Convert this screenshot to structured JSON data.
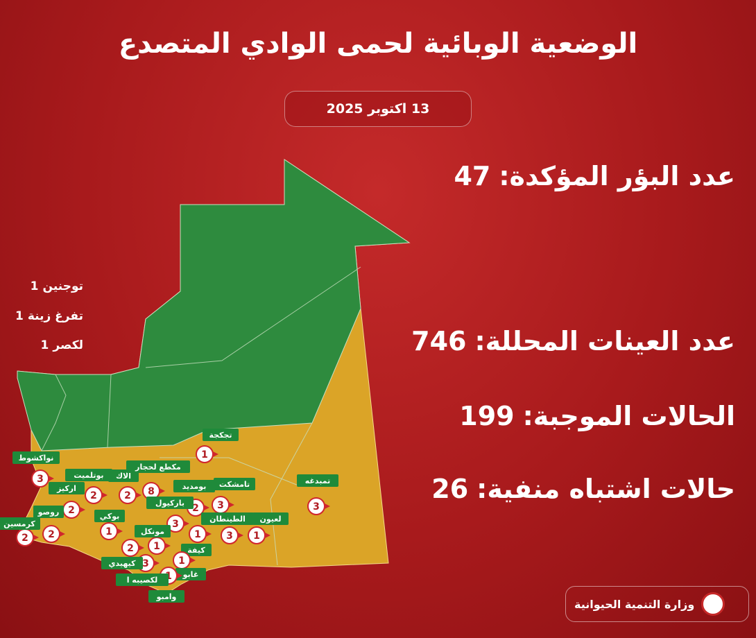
{
  "title": "الوضعية الوبائية لحمى الوادي المتصدع",
  "date": "13 اكتوبر 2025",
  "stats": [
    {
      "label": "عدد البؤر المؤكدة:",
      "value": 47
    },
    {
      "label": "عدد العينات المحللة:",
      "value": 746
    },
    {
      "label": "الحالات الموجبة:",
      "value": 199
    },
    {
      "label": "حالات اشتباه منفية:",
      "value": 26
    }
  ],
  "side_list": [
    {
      "name": "توجنين",
      "count": 1
    },
    {
      "name": "تفرغ زينة",
      "count": 1
    },
    {
      "name": "لكصر",
      "count": 1
    }
  ],
  "markers": [
    {
      "label": "تجكجة",
      "count": 1
    },
    {
      "label": "نواكشوط",
      "count": 3
    },
    {
      "label": "بوتلميت",
      "count": 2
    },
    {
      "label": "ألاك",
      "count": 2
    },
    {
      "label": "مكطع لحجار",
      "count": 8
    },
    {
      "label": "بومديد",
      "count": 2
    },
    {
      "label": "تامشكت",
      "count": 3
    },
    {
      "label": "تمبدغه",
      "count": 3
    },
    {
      "label": "اركيز",
      "count": 2
    },
    {
      "label": "روصو",
      "count": 2
    },
    {
      "label": "كرمسين",
      "count": 2
    },
    {
      "label": "باركيول",
      "count": 3
    },
    {
      "label": "بوكي",
      "count": 1
    },
    {
      "label": "مونكل",
      "count": 1
    },
    {
      "label": null,
      "count": 2
    },
    {
      "label": "الطينطان",
      "count": 3
    },
    {
      "label": "لعيون",
      "count": 1
    },
    {
      "label": "كيفة",
      "count": 1
    },
    {
      "label": "كيهيدي",
      "count": 3
    },
    {
      "label": "غابو",
      "count": 1
    },
    {
      "label": "لكصيبه ا",
      "count": 1
    },
    {
      "label": "وامبو",
      "count": null
    }
  ],
  "footer": "وزارة التنمية الحيوانية"
}
